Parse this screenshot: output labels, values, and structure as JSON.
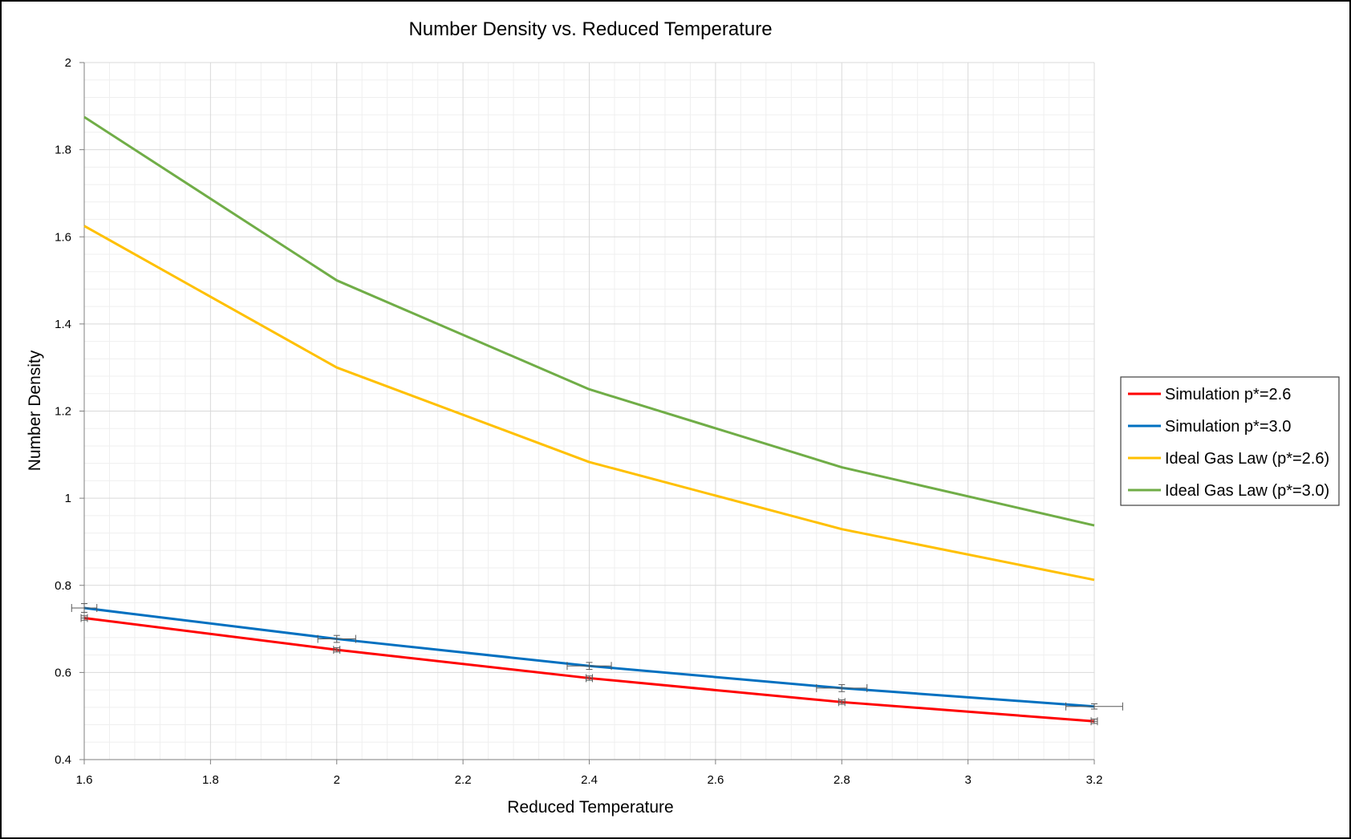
{
  "chart_data": {
    "type": "line",
    "title": "Number Density vs. Reduced Temperature",
    "xlabel": "Reduced Temperature",
    "ylabel": "Number Density",
    "xlim": [
      1.6,
      3.2
    ],
    "ylim": [
      0.4,
      2.0
    ],
    "x_ticks": [
      "1.6",
      "1.8",
      "2",
      "2.2",
      "2.4",
      "2.6",
      "2.8",
      "3",
      "3.2"
    ],
    "y_ticks": [
      "0.4",
      "0.6",
      "0.8",
      "1",
      "1.2",
      "1.4",
      "1.6",
      "1.8",
      "2"
    ],
    "grid": {
      "major": true,
      "minor": true
    },
    "legend_position": "right",
    "series": [
      {
        "name": "Simulation p*=2.6",
        "color": "#ff0000",
        "x": [
          1.6,
          2.0,
          2.4,
          2.8,
          3.2
        ],
        "y": [
          0.725,
          0.652,
          0.587,
          0.532,
          0.488
        ],
        "x_error": [
          0.005,
          0.005,
          0.005,
          0.005,
          0.005
        ],
        "y_error": [
          0.005,
          0.005,
          0.005,
          0.005,
          0.005
        ]
      },
      {
        "name": "Simulation p*=3.0",
        "color": "#0070c0",
        "x": [
          1.6,
          2.0,
          2.4,
          2.8,
          3.2
        ],
        "y": [
          0.748,
          0.677,
          0.615,
          0.564,
          0.522
        ],
        "x_error": [
          0.02,
          0.03,
          0.035,
          0.04,
          0.045
        ],
        "y_error": [
          0.01,
          0.008,
          0.008,
          0.008,
          0.006
        ]
      },
      {
        "name": "Ideal Gas Law (p*=2.6)",
        "color": "#ffc000",
        "x": [
          1.6,
          2.0,
          2.4,
          2.8,
          3.2
        ],
        "y": [
          1.625,
          1.3,
          1.083,
          0.929,
          0.8125
        ]
      },
      {
        "name": "Ideal Gas Law (p*=3.0)",
        "color": "#70ad47",
        "x": [
          1.6,
          2.0,
          2.4,
          2.8,
          3.2
        ],
        "y": [
          1.875,
          1.5,
          1.25,
          1.071,
          0.9375
        ]
      }
    ]
  }
}
